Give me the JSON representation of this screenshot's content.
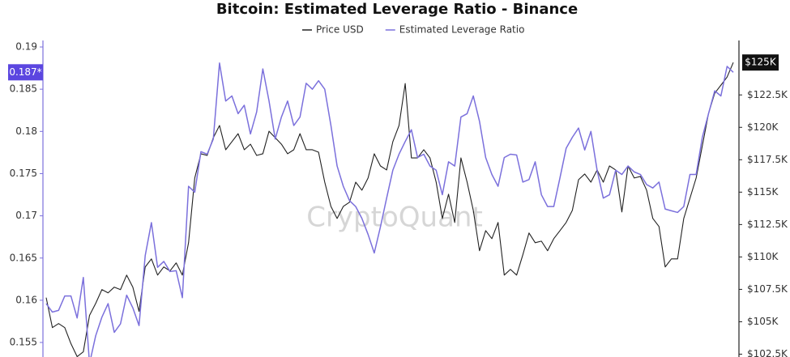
{
  "chart_data": {
    "type": "line",
    "title": "Bitcoin: Estimated Leverage Ratio - Binance",
    "watermark": "CryptoQuant",
    "legend": "top",
    "series": [
      {
        "name": "Price USD",
        "color": "#222222",
        "axis": "y2",
        "values": [
          106860,
          104550,
          104860,
          104550,
          103310,
          102310,
          102680,
          105490,
          106420,
          107480,
          107230,
          107670,
          107480,
          108600,
          107670,
          105800,
          109230,
          109850,
          108600,
          109230,
          108920,
          109540,
          108600,
          111100,
          116090,
          117960,
          117830,
          119200,
          120140,
          118270,
          118890,
          119510,
          118270,
          118700,
          117830,
          117960,
          119700,
          119200,
          118700,
          117960,
          118270,
          119510,
          118270,
          118270,
          118080,
          115770,
          113900,
          112970,
          113900,
          114220,
          115770,
          115150,
          116090,
          117960,
          117020,
          116710,
          118890,
          120140,
          123380,
          117640,
          117640,
          118270,
          117640,
          115770,
          112970,
          114840,
          112660,
          117640,
          115770,
          113590,
          110480,
          112030,
          111410,
          112660,
          108600,
          109040,
          108600,
          110160,
          111850,
          111100,
          111220,
          110480,
          111410,
          112030,
          112660,
          113590,
          115960,
          116400,
          115770,
          116710,
          115770,
          117020,
          116710,
          113470,
          117020,
          116090,
          116210,
          115150,
          112970,
          112350,
          109230,
          109850,
          109850,
          112970,
          114530,
          116090,
          118580,
          121070,
          122630,
          123250,
          123880,
          125000
        ]
      },
      {
        "name": "Estimated Leverage Ratio",
        "color": "#7b70dc",
        "values": [
          0.1596,
          0.1586,
          0.1588,
          0.1605,
          0.1605,
          0.1579,
          0.1627,
          0.1525,
          0.1558,
          0.158,
          0.1596,
          0.1562,
          0.1572,
          0.1606,
          0.1591,
          0.157,
          0.1653,
          0.1692,
          0.1639,
          0.1646,
          0.1634,
          0.1635,
          0.1603,
          0.1735,
          0.1728,
          0.1776,
          0.1773,
          0.1791,
          0.1881,
          0.1836,
          0.1842,
          0.1821,
          0.1831,
          0.1797,
          0.1823,
          0.1874,
          0.1836,
          0.1791,
          0.1817,
          0.1836,
          0.1807,
          0.1817,
          0.1857,
          0.185,
          0.186,
          0.185,
          0.1807,
          0.1759,
          0.1735,
          0.1718,
          0.1711,
          0.1697,
          0.1678,
          0.1656,
          0.1687,
          0.1721,
          0.1754,
          0.1773,
          0.1788,
          0.1802,
          0.1769,
          0.1773,
          0.1759,
          0.1754,
          0.1725,
          0.1764,
          0.1759,
          0.1817,
          0.1821,
          0.1842,
          0.1812,
          0.1769,
          0.1749,
          0.1735,
          0.1769,
          0.1773,
          0.1772,
          0.174,
          0.1743,
          0.1764,
          0.1725,
          0.1711,
          0.1711,
          0.1745,
          0.178,
          0.1793,
          0.1804,
          0.1778,
          0.18,
          0.1754,
          0.1721,
          0.1725,
          0.1754,
          0.1749,
          0.1759,
          0.1752,
          0.1749,
          0.1737,
          0.1733,
          0.174,
          0.1708,
          0.1706,
          0.1704,
          0.1711,
          0.1749,
          0.1749,
          0.1793,
          0.1821,
          0.1848,
          0.1842,
          0.1877,
          0.187
        ]
      }
    ],
    "ylim": [
      0.153,
      0.191
    ],
    "yticks": [
      0.155,
      0.16,
      0.165,
      0.17,
      0.175,
      0.18,
      0.185,
      0.19
    ],
    "y2lim": [
      102100,
      126850
    ],
    "y2ticks": [
      {
        "value": 102500,
        "label": "$102.5K"
      },
      {
        "value": 105000,
        "label": "$105K"
      },
      {
        "value": 107500,
        "label": "$107.5K"
      },
      {
        "value": 110000,
        "label": "$110K"
      },
      {
        "value": 112500,
        "label": "$112.5K"
      },
      {
        "value": 115000,
        "label": "$115K"
      },
      {
        "value": 117500,
        "label": "$117.5K"
      },
      {
        "value": 120000,
        "label": "$120K"
      },
      {
        "value": 122500,
        "label": "$122.5K"
      }
    ],
    "last_value_markers": [
      {
        "value": 0.187,
        "label": "0.187*",
        "axis": "y"
      },
      {
        "value": 125000,
        "label": "$125K",
        "axis": "y2"
      }
    ],
    "grid": false
  }
}
